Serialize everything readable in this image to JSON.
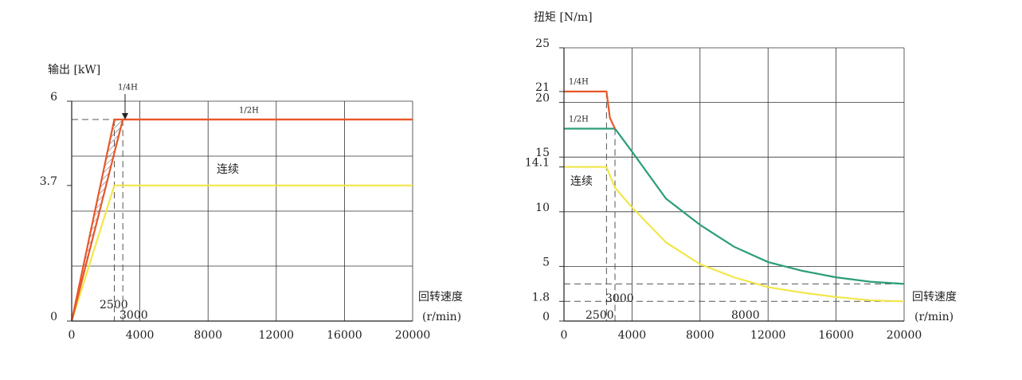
{
  "chart_data": [
    {
      "type": "line",
      "title": "输出 [kW]",
      "xlabel": "回转速度",
      "xunit": "(r/min)",
      "xlim": [
        0,
        20000
      ],
      "xticks": [
        0,
        4000,
        8000,
        12000,
        16000,
        20000
      ],
      "ylim": [
        0,
        6
      ],
      "yticks": [
        0,
        3.7,
        6
      ],
      "ygrid": [
        0,
        1.5,
        3,
        4.5,
        6
      ],
      "grid": true,
      "vlines": [
        2500,
        3000
      ],
      "hlines": [
        5.5
      ],
      "series": [
        {
          "name": "1/4H",
          "color": "#e8572a",
          "x": [
            0,
            2500,
            20000
          ],
          "values": [
            0,
            5.5,
            5.5
          ]
        },
        {
          "name": "1/2H",
          "color": "#e8572a",
          "x": [
            0,
            3000,
            20000
          ],
          "values": [
            0,
            5.5,
            5.5
          ]
        },
        {
          "name": "连续",
          "color": "#f2e64a",
          "x": [
            0,
            2500,
            20000
          ],
          "values": [
            0,
            3.7,
            3.7
          ]
        }
      ]
    },
    {
      "type": "line",
      "title": "扭矩 [N/m]",
      "xlabel": "回转速度",
      "xunit": "(r/min)",
      "xlim": [
        0,
        20000
      ],
      "xticks": [
        0,
        4000,
        8000,
        12000,
        16000,
        20000
      ],
      "ylim": [
        0,
        25
      ],
      "yticks": [
        0,
        5,
        10,
        15,
        20,
        25
      ],
      "yticks_extra": [
        1.8,
        14.1,
        21
      ],
      "grid": true,
      "vlines": [
        2500,
        3000
      ],
      "hlines": [
        3.4,
        1.8
      ],
      "annotations": [
        "8000"
      ],
      "series": [
        {
          "name": "1/4H",
          "color": "#e8572a",
          "x": [
            0,
            2500,
            2700,
            3000
          ],
          "values": [
            21,
            21,
            18.6,
            17.6
          ]
        },
        {
          "name": "1/2H",
          "color": "#2a9d7a",
          "x": [
            0,
            3000,
            4000,
            6000,
            8000,
            10000,
            12000,
            14000,
            16000,
            18000,
            20000
          ],
          "values": [
            17.6,
            17.6,
            15.5,
            11.2,
            8.8,
            6.8,
            5.4,
            4.6,
            4.0,
            3.6,
            3.4
          ]
        },
        {
          "name": "连续",
          "color": "#f2e64a",
          "x": [
            0,
            2500,
            3000,
            4000,
            6000,
            8000,
            10000,
            12000,
            14000,
            16000,
            18000,
            20000
          ],
          "values": [
            14.1,
            14.1,
            12.2,
            10.4,
            7.2,
            5.2,
            4.0,
            3.1,
            2.6,
            2.2,
            1.9,
            1.8
          ]
        }
      ]
    }
  ]
}
